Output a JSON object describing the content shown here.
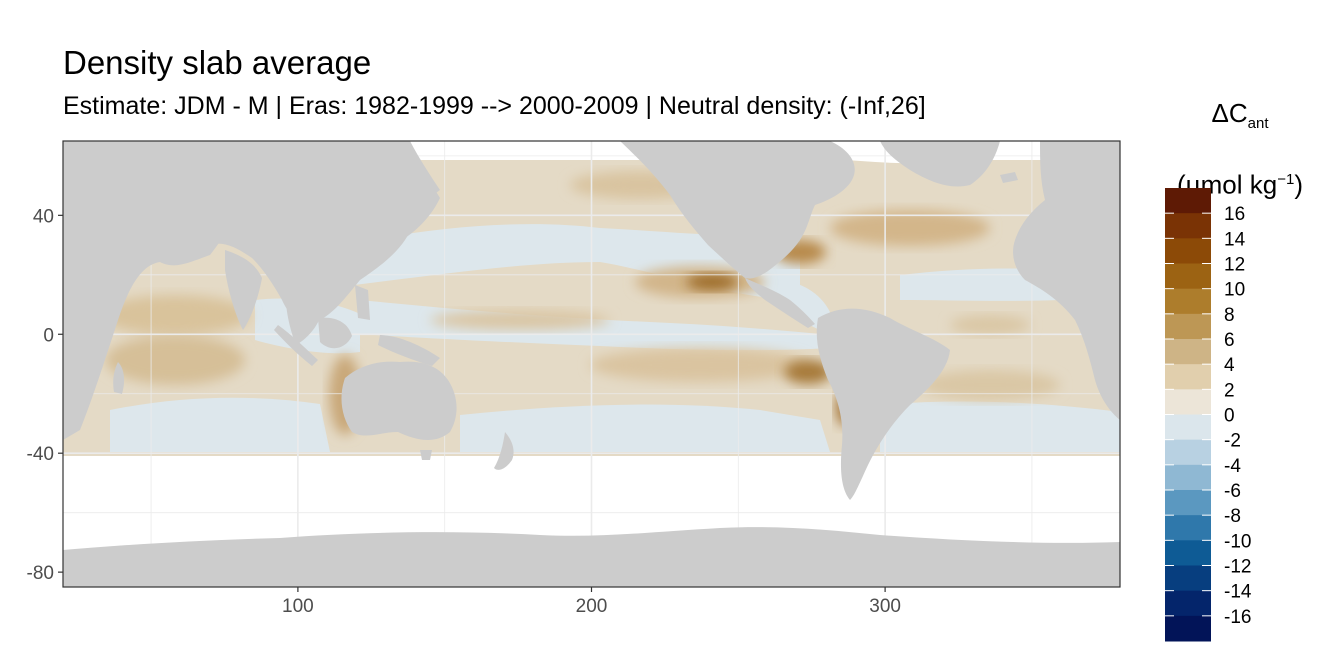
{
  "title": "Density slab average",
  "subtitle": "Estimate: JDM - M | Eras: 1982-1999 --> 2000-2009 | Neutral density: (-Inf,26]",
  "legend": {
    "title_main": "ΔC",
    "title_sub": "ant",
    "unit_pre": "(µmol kg",
    "unit_sup": "−1",
    "unit_post": ")",
    "labels": [
      "16",
      "14",
      "12",
      "10",
      "8",
      "6",
      "4",
      "2",
      "0",
      "-2",
      "-4",
      "-6",
      "-8",
      "-10",
      "-12",
      "-14",
      "-16"
    ],
    "colors": [
      "#5e1a05",
      "#7a3305",
      "#8c4a07",
      "#9c6313",
      "#ad7d2c",
      "#bd9755",
      "#ceb486",
      "#e1cfad",
      "#ece5d8",
      "#dbe6ec",
      "#b8d1e2",
      "#8fb8d3",
      "#5b98c0",
      "#2f78ab",
      "#0e5b95",
      "#073e7f",
      "#04256b",
      "#021458"
    ]
  },
  "colors": {
    "land": "#cccccc",
    "ocean_missing": "#ffffff",
    "grid": "#ebebeb",
    "panel_border": "#333333"
  },
  "chart_data": {
    "type": "heatmap",
    "title": "Density slab average",
    "subtitle": "Estimate: JDM - M | Eras: 1982-1999 --> 2000-2009 | Neutral density: (-Inf,26]",
    "xlabel": "",
    "ylabel": "",
    "xlim": [
      20,
      380
    ],
    "ylim": [
      -85,
      65
    ],
    "xticks": [
      "100",
      "200",
      "300"
    ],
    "xtick_values": [
      100,
      200,
      300
    ],
    "yticks": [
      "40",
      "0",
      "-40",
      "-80"
    ],
    "ytick_values": [
      40,
      0,
      -40,
      -80
    ],
    "colorbar_range": [
      -18,
      18
    ],
    "colorbar_step": 2,
    "legend_position": "right",
    "grid": true
  }
}
